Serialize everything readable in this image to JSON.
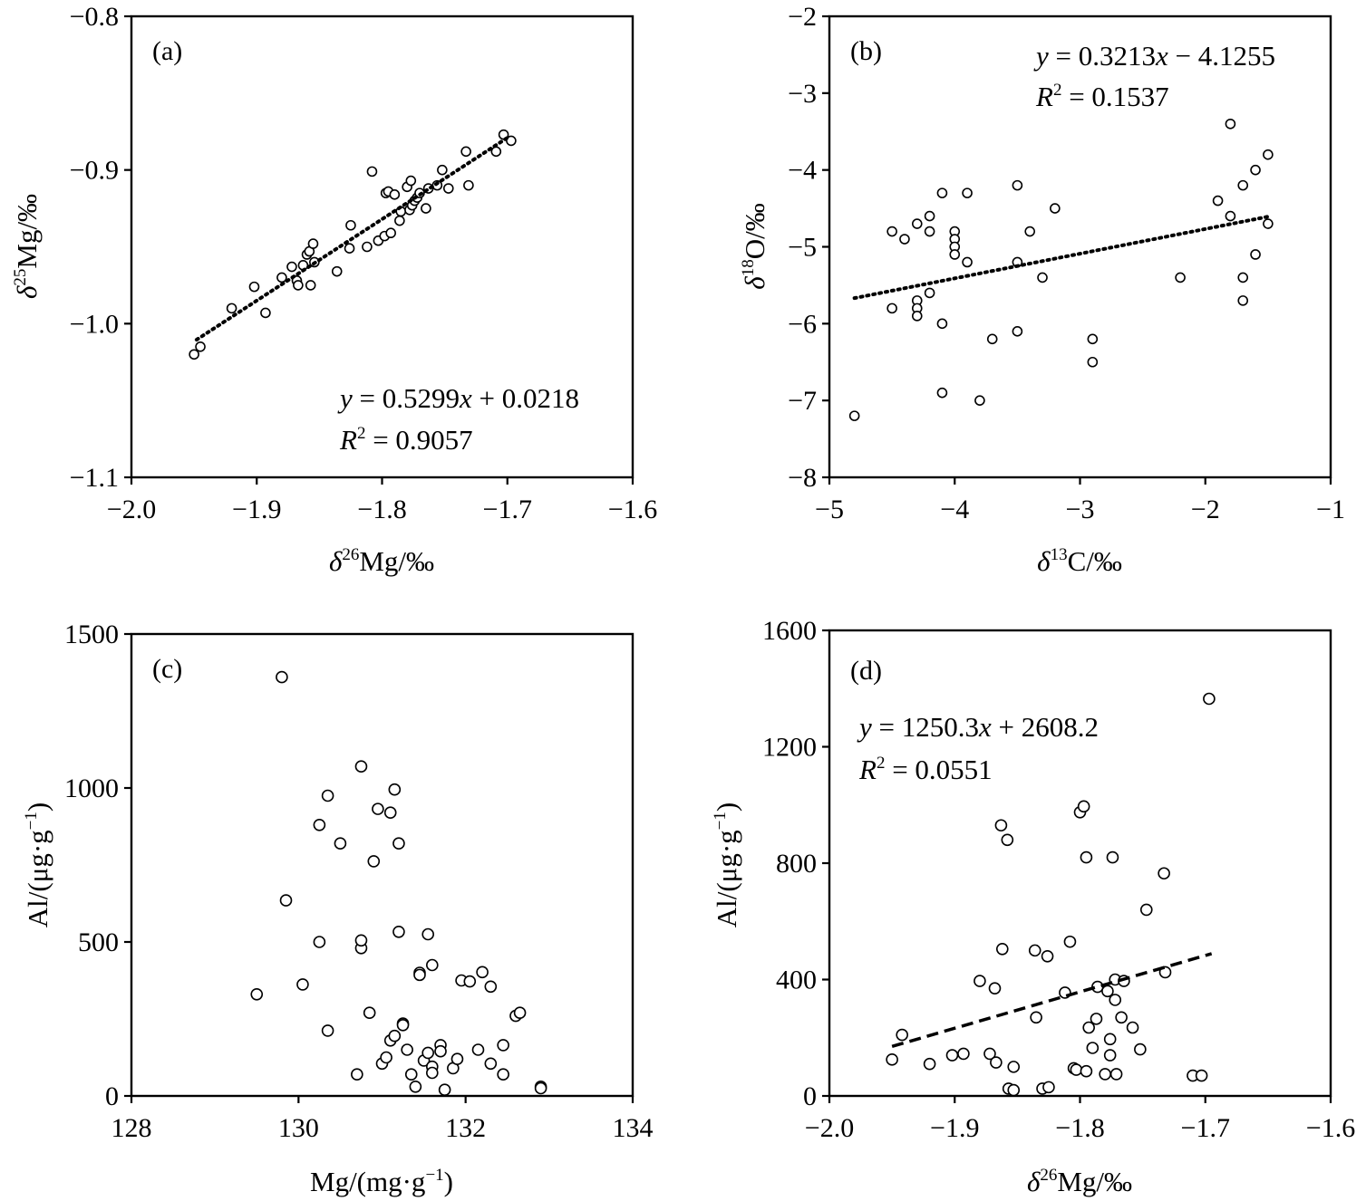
{
  "chart_data": [
    {
      "id": "a",
      "type": "scatter",
      "panel_label": "(a)",
      "xlabel": {
        "symbol": "δ",
        "sup": "26",
        "rest": "Mg/‰"
      },
      "ylabel": {
        "symbol": "δ",
        "sup": "25",
        "rest": "Mg/‰"
      },
      "xlim": [
        -2.0,
        -1.6
      ],
      "ylim": [
        -1.1,
        -0.8
      ],
      "xticks": [
        -2.0,
        -1.9,
        -1.8,
        -1.7,
        -1.6
      ],
      "xtick_labels": [
        "−2.0",
        "−1.9",
        "−1.8",
        "−1.7",
        "−1.6"
      ],
      "yticks": [
        -1.1,
        -1.0,
        -0.9,
        -0.8
      ],
      "ytick_labels": [
        "−1.1",
        "−1.0",
        "−0.9",
        "−0.8"
      ],
      "points": [
        [
          -1.95,
          -1.02
        ],
        [
          -1.945,
          -1.015
        ],
        [
          -1.92,
          -0.99
        ],
        [
          -1.902,
          -0.976
        ],
        [
          -1.893,
          -0.993
        ],
        [
          -1.88,
          -0.97
        ],
        [
          -1.872,
          -0.963
        ],
        [
          -1.868,
          -0.972
        ],
        [
          -1.867,
          -0.975
        ],
        [
          -1.863,
          -0.962
        ],
        [
          -1.86,
          -0.955
        ],
        [
          -1.858,
          -0.953
        ],
        [
          -1.857,
          -0.975
        ],
        [
          -1.855,
          -0.948
        ],
        [
          -1.854,
          -0.96
        ],
        [
          -1.836,
          -0.966
        ],
        [
          -1.826,
          -0.951
        ],
        [
          -1.825,
          -0.936
        ],
        [
          -1.812,
          -0.95
        ],
        [
          -1.808,
          -0.901
        ],
        [
          -1.803,
          -0.946
        ],
        [
          -1.798,
          -0.943
        ],
        [
          -1.797,
          -0.915
        ],
        [
          -1.795,
          -0.914
        ],
        [
          -1.793,
          -0.941
        ],
        [
          -1.79,
          -0.916
        ],
        [
          -1.786,
          -0.933
        ],
        [
          -1.785,
          -0.927
        ],
        [
          -1.78,
          -0.911
        ],
        [
          -1.778,
          -0.926
        ],
        [
          -1.777,
          -0.907
        ],
        [
          -1.776,
          -0.923
        ],
        [
          -1.774,
          -0.92
        ],
        [
          -1.772,
          -0.918
        ],
        [
          -1.77,
          -0.915
        ],
        [
          -1.765,
          -0.925
        ],
        [
          -1.763,
          -0.912
        ],
        [
          -1.756,
          -0.91
        ],
        [
          -1.752,
          -0.9
        ],
        [
          -1.747,
          -0.912
        ],
        [
          -1.733,
          -0.888
        ],
        [
          -1.731,
          -0.91
        ],
        [
          -1.709,
          -0.888
        ],
        [
          -1.703,
          -0.877
        ],
        [
          -1.697,
          -0.881
        ]
      ],
      "trendline": {
        "style": "dotted",
        "slope": 0.5299,
        "intercept": 0.0218,
        "x_range": [
          -1.948,
          -1.698
        ]
      },
      "equation": {
        "y": "y",
        "rhs_a": " = 0.5299",
        "x": "x",
        "rhs_b": " + 0.0218"
      },
      "r2": {
        "R": "R",
        "sup": "2",
        "rhs": " = 0.9057"
      }
    },
    {
      "id": "b",
      "type": "scatter",
      "panel_label": "(b)",
      "xlabel": {
        "symbol": "δ",
        "sup": "13",
        "rest": "C/‰"
      },
      "ylabel": {
        "symbol": "δ",
        "sup": "18",
        "rest": "O/‰"
      },
      "xlim": [
        -5,
        -1
      ],
      "ylim": [
        -8,
        -2
      ],
      "xticks": [
        -5,
        -4,
        -3,
        -2,
        -1
      ],
      "xtick_labels": [
        "−5",
        "−4",
        "−3",
        "−2",
        "−1"
      ],
      "yticks": [
        -8,
        -7,
        -6,
        -5,
        -4,
        -3,
        -2
      ],
      "ytick_labels": [
        "−8",
        "−7",
        "−6",
        "−5",
        "−4",
        "−3",
        "−2"
      ],
      "points": [
        [
          -4.8,
          -7.2
        ],
        [
          -4.5,
          -4.8
        ],
        [
          -4.5,
          -5.8
        ],
        [
          -4.4,
          -4.9
        ],
        [
          -4.3,
          -4.7
        ],
        [
          -4.3,
          -5.7
        ],
        [
          -4.3,
          -5.8
        ],
        [
          -4.3,
          -5.9
        ],
        [
          -4.2,
          -4.6
        ],
        [
          -4.2,
          -4.8
        ],
        [
          -4.2,
          -5.6
        ],
        [
          -4.1,
          -4.3
        ],
        [
          -4.1,
          -6.0
        ],
        [
          -4.1,
          -6.9
        ],
        [
          -4.0,
          -4.8
        ],
        [
          -4.0,
          -4.9
        ],
        [
          -4.0,
          -5.0
        ],
        [
          -4.0,
          -5.1
        ],
        [
          -3.9,
          -4.3
        ],
        [
          -3.9,
          -5.2
        ],
        [
          -3.8,
          -7.0
        ],
        [
          -3.7,
          -6.2
        ],
        [
          -3.5,
          -4.2
        ],
        [
          -3.5,
          -5.2
        ],
        [
          -3.5,
          -6.1
        ],
        [
          -3.4,
          -4.8
        ],
        [
          -3.3,
          -5.4
        ],
        [
          -3.2,
          -4.5
        ],
        [
          -2.9,
          -6.2
        ],
        [
          -2.9,
          -6.5
        ],
        [
          -2.2,
          -5.4
        ],
        [
          -1.9,
          -4.4
        ],
        [
          -1.8,
          -3.4
        ],
        [
          -1.8,
          -4.6
        ],
        [
          -1.7,
          -4.2
        ],
        [
          -1.7,
          -5.4
        ],
        [
          -1.7,
          -5.7
        ],
        [
          -1.6,
          -4.0
        ],
        [
          -1.6,
          -5.1
        ],
        [
          -1.5,
          -3.8
        ],
        [
          -1.5,
          -4.7
        ]
      ],
      "trendline": {
        "style": "dotted",
        "slope": 0.3213,
        "intercept": -4.1255,
        "x_range": [
          -4.8,
          -1.5
        ]
      },
      "equation": {
        "y": "y",
        "rhs_a": " = 0.3213",
        "x": "x",
        "rhs_b": " − 4.1255"
      },
      "r2": {
        "R": "R",
        "sup": "2",
        "rhs": " = 0.1537"
      }
    },
    {
      "id": "c",
      "type": "scatter",
      "panel_label": "(c)",
      "xlabel": {
        "text": "Mg/(mg·g",
        "sup": "−1",
        "close": ")"
      },
      "ylabel": {
        "text": "Al/(μg·g",
        "sup": "−1",
        "close": ")"
      },
      "xlim": [
        128,
        134
      ],
      "ylim": [
        0,
        1500
      ],
      "xticks": [
        128,
        130,
        132,
        134
      ],
      "xtick_labels": [
        "128",
        "130",
        "132",
        "134"
      ],
      "yticks": [
        0,
        500,
        1000,
        1500
      ],
      "ytick_labels": [
        "0",
        "500",
        "1000",
        "1500"
      ],
      "points": [
        [
          129.5,
          330
        ],
        [
          129.8,
          1360
        ],
        [
          129.85,
          635
        ],
        [
          130.05,
          362
        ],
        [
          130.25,
          500
        ],
        [
          130.25,
          880
        ],
        [
          130.35,
          212
        ],
        [
          130.35,
          975
        ],
        [
          130.5,
          820
        ],
        [
          130.7,
          70
        ],
        [
          130.75,
          1070
        ],
        [
          130.75,
          480
        ],
        [
          130.75,
          505
        ],
        [
          130.85,
          270
        ],
        [
          130.9,
          762
        ],
        [
          130.95,
          932
        ],
        [
          131.0,
          105
        ],
        [
          131.05,
          125
        ],
        [
          131.1,
          920
        ],
        [
          131.1,
          180
        ],
        [
          131.15,
          995
        ],
        [
          131.15,
          195
        ],
        [
          131.2,
          820
        ],
        [
          131.2,
          533
        ],
        [
          131.25,
          235
        ],
        [
          131.25,
          230
        ],
        [
          131.3,
          150
        ],
        [
          131.35,
          70
        ],
        [
          131.4,
          30
        ],
        [
          131.45,
          400
        ],
        [
          131.45,
          393
        ],
        [
          131.5,
          115
        ],
        [
          131.55,
          525
        ],
        [
          131.55,
          140
        ],
        [
          131.6,
          425
        ],
        [
          131.6,
          95
        ],
        [
          131.6,
          75
        ],
        [
          131.7,
          165
        ],
        [
          131.7,
          145
        ],
        [
          131.75,
          20
        ],
        [
          131.85,
          90
        ],
        [
          131.9,
          120
        ],
        [
          131.95,
          375
        ],
        [
          132.05,
          372
        ],
        [
          132.15,
          150
        ],
        [
          132.2,
          402
        ],
        [
          132.3,
          105
        ],
        [
          132.3,
          355
        ],
        [
          132.45,
          165
        ],
        [
          132.45,
          70
        ],
        [
          132.6,
          260
        ],
        [
          132.65,
          270
        ],
        [
          132.9,
          30
        ],
        [
          132.9,
          25
        ]
      ]
    },
    {
      "id": "d",
      "type": "scatter",
      "panel_label": "(d)",
      "xlabel": {
        "symbol": "δ",
        "sup": "26",
        "rest": "Mg/‰"
      },
      "ylabel": {
        "text": "Al/(μg·g",
        "sup": "−1",
        "close": ")"
      },
      "xlim": [
        -2.0,
        -1.6
      ],
      "ylim": [
        0,
        1600
      ],
      "xticks": [
        -2.0,
        -1.9,
        -1.8,
        -1.7,
        -1.6
      ],
      "xtick_labels": [
        "−2.0",
        "−1.9",
        "−1.8",
        "−1.7",
        "−1.6"
      ],
      "yticks": [
        0,
        400,
        800,
        1200,
        1600
      ],
      "ytick_labels": [
        "0",
        "400",
        "800",
        "1200",
        "1600"
      ],
      "points": [
        [
          -1.95,
          125
        ],
        [
          -1.942,
          210
        ],
        [
          -1.92,
          110
        ],
        [
          -1.902,
          140
        ],
        [
          -1.893,
          145
        ],
        [
          -1.88,
          395
        ],
        [
          -1.872,
          145
        ],
        [
          -1.868,
          370
        ],
        [
          -1.867,
          115
        ],
        [
          -1.863,
          930
        ],
        [
          -1.862,
          505
        ],
        [
          -1.858,
          880
        ],
        [
          -1.857,
          25
        ],
        [
          -1.853,
          100
        ],
        [
          -1.853,
          20
        ],
        [
          -1.836,
          500
        ],
        [
          -1.835,
          270
        ],
        [
          -1.83,
          25
        ],
        [
          -1.826,
          480
        ],
        [
          -1.825,
          30
        ],
        [
          -1.812,
          355
        ],
        [
          -1.808,
          530
        ],
        [
          -1.805,
          95
        ],
        [
          -1.803,
          90
        ],
        [
          -1.8,
          975
        ],
        [
          -1.797,
          995
        ],
        [
          -1.795,
          820
        ],
        [
          -1.795,
          85
        ],
        [
          -1.793,
          235
        ],
        [
          -1.79,
          165
        ],
        [
          -1.787,
          265
        ],
        [
          -1.786,
          375
        ],
        [
          -1.78,
          75
        ],
        [
          -1.778,
          360
        ],
        [
          -1.776,
          195
        ],
        [
          -1.776,
          140
        ],
        [
          -1.774,
          820
        ],
        [
          -1.772,
          330
        ],
        [
          -1.772,
          400
        ],
        [
          -1.771,
          75
        ],
        [
          -1.767,
          270
        ],
        [
          -1.765,
          395
        ],
        [
          -1.758,
          235
        ],
        [
          -1.752,
          160
        ],
        [
          -1.747,
          640
        ],
        [
          -1.733,
          765
        ],
        [
          -1.732,
          425
        ],
        [
          -1.71,
          70
        ],
        [
          -1.703,
          70
        ],
        [
          -1.697,
          1365
        ]
      ],
      "trendline": {
        "style": "dashed",
        "slope": 1250.3,
        "intercept": 2608.2,
        "x_range": [
          -1.95,
          -1.695
        ]
      },
      "equation": {
        "y": "y",
        "rhs_a": " = 1250.3",
        "x": "x",
        "rhs_b": " + 2608.2"
      },
      "r2": {
        "R": "R",
        "sup": "2",
        "rhs": " = 0.0551"
      }
    }
  ]
}
